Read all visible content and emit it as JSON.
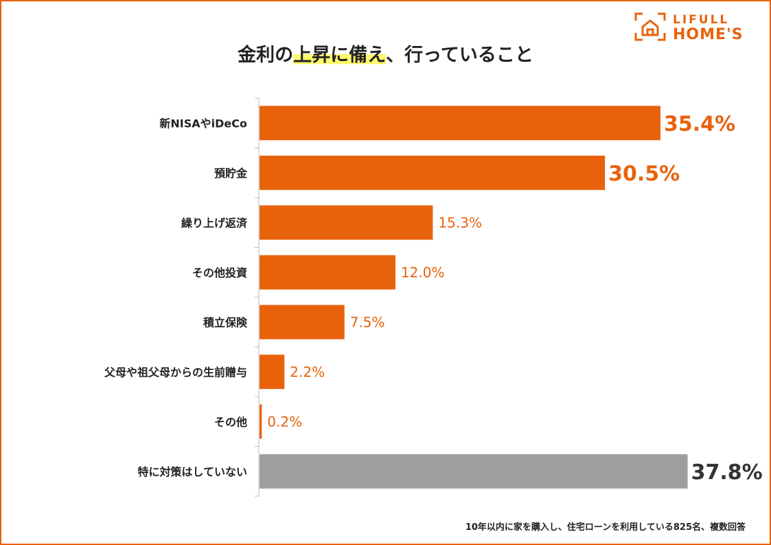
{
  "brand": {
    "line1": "LIFULL",
    "line2": "HOME'S",
    "color": "#e8620c"
  },
  "title": {
    "before": "金利の",
    "highlight": "上昇に備え",
    "after": "、行っていること"
  },
  "chart_data": {
    "type": "bar",
    "orientation": "horizontal",
    "title": "金利の上昇に備え、行っていること",
    "categories": [
      "新NISAやiDeCo",
      "預貯金",
      "繰り上げ返済",
      "その他投資",
      "積立保険",
      "父母や祖父母からの生前贈与",
      "その他",
      "特に対策はしていない"
    ],
    "values": [
      35.4,
      30.5,
      15.3,
      12.0,
      7.5,
      2.2,
      0.2,
      37.8
    ],
    "labels": [
      "35.4%",
      "30.5%",
      "15.3%",
      "12.0%",
      "7.5%",
      "2.2%",
      "0.2%",
      "37.8%"
    ],
    "unit": "%",
    "colors": [
      "#e8620c",
      "#e8620c",
      "#e8620c",
      "#e8620c",
      "#e8620c",
      "#e8620c",
      "#e8620c",
      "#9e9e9e"
    ],
    "label_colors": [
      "#e8620c",
      "#e8620c",
      "#e8620c",
      "#e8620c",
      "#e8620c",
      "#e8620c",
      "#e8620c",
      "#333333"
    ],
    "xlim": [
      0,
      40
    ],
    "grid": false,
    "legend": "none"
  },
  "footnote": "10年以内に家を購入し、住宅ローンを利用している825名、複数回答"
}
